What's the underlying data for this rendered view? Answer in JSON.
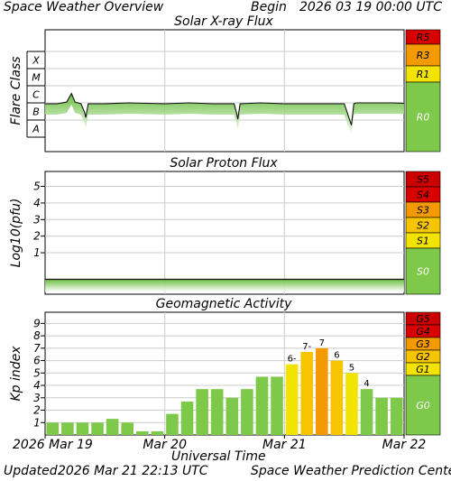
{
  "header": {
    "title": "Space Weather Overview",
    "begin_label": "Begin",
    "begin_value": "2026 03 19 00:00 UTC"
  },
  "footer": {
    "updated_label": "Updated",
    "updated_value": "2026 Mar 21 22:13 UTC",
    "credit": "Space Weather Prediction Center"
  },
  "x_axis": {
    "label": "Universal Time",
    "ticks": [
      "2026 Mar 19",
      "Mar 20",
      "Mar 21",
      "Mar 22"
    ]
  },
  "colors": {
    "green": "#7ec94a",
    "yellow": "#f2e400",
    "gold": "#f7c400",
    "orange": "#f29a00",
    "red_orange": "#ee5500",
    "red": "#d90000",
    "dark_red": "#cc0000",
    "grid": "#cccccc"
  },
  "chart_data": [
    {
      "type": "line",
      "title": "Solar X-ray Flux",
      "ylabel": "Flare Class",
      "y_categories": [
        "A",
        "B",
        "C",
        "M",
        "X"
      ],
      "xlim_days": [
        0,
        3
      ],
      "series": [
        {
          "values_class_level": [
            [
              0.0,
              1.95
            ],
            [
              0.1,
              1.95
            ],
            [
              0.18,
              2.05
            ],
            [
              0.22,
              2.55
            ],
            [
              0.25,
              2.05
            ],
            [
              0.3,
              1.95
            ],
            [
              0.33,
              1.45
            ],
            [
              0.34,
              1.15
            ],
            [
              0.36,
              1.95
            ],
            [
              0.5,
              1.95
            ],
            [
              0.7,
              2.0
            ],
            [
              1.0,
              1.95
            ],
            [
              1.2,
              2.0
            ],
            [
              1.4,
              1.95
            ],
            [
              1.58,
              1.95
            ],
            [
              1.6,
              1.4
            ],
            [
              1.61,
              1.05
            ],
            [
              1.63,
              1.95
            ],
            [
              1.8,
              2.0
            ],
            [
              2.0,
              1.95
            ],
            [
              2.2,
              1.95
            ],
            [
              2.38,
              1.95
            ],
            [
              2.5,
              1.95
            ],
            [
              2.55,
              0.9
            ],
            [
              2.56,
              0.7
            ],
            [
              2.58,
              1.95
            ],
            [
              2.6,
              2.0
            ],
            [
              2.75,
              2.0
            ],
            [
              2.9,
              2.0
            ],
            [
              3.0,
              1.98
            ]
          ]
        }
      ],
      "scale_labels": [
        "R5",
        "R3",
        "R1",
        "R0"
      ]
    },
    {
      "type": "line",
      "title": "Solar Proton Flux",
      "ylabel": "Log10(pfu)",
      "ylim": [
        -1.5,
        5.9
      ],
      "yticks": [
        "1",
        "2",
        "3",
        "4",
        "5"
      ],
      "series": [
        {
          "values_log10": [
            [
              0.0,
              -0.6
            ],
            [
              1.0,
              -0.6
            ],
            [
              2.0,
              -0.6
            ],
            [
              3.0,
              -0.6
            ]
          ]
        }
      ],
      "scale_labels": [
        "S5",
        "S4",
        "S3",
        "S2",
        "S1",
        "S0"
      ]
    },
    {
      "type": "bar",
      "title": "Geomagnetic Activity",
      "ylabel": "Kp index",
      "ylim": [
        0,
        9.9
      ],
      "yticks": [
        "1",
        "2",
        "3",
        "4",
        "5",
        "6",
        "7",
        "8",
        "9"
      ],
      "values": [
        1.0,
        1.0,
        1.0,
        1.0,
        1.3,
        1.0,
        0.3,
        0.3,
        1.7,
        2.7,
        3.7,
        3.7,
        3.0,
        3.7,
        4.7,
        4.7,
        5.7,
        6.7,
        7.0,
        6.0,
        5.0,
        3.7,
        3.0,
        3.0
      ],
      "bar_labels": [
        "",
        "",
        "",
        "",
        "",
        "",
        "",
        "",
        "",
        "",
        "",
        "",
        "",
        "",
        "",
        "",
        "6-",
        "7-",
        "7",
        "6",
        "5",
        "4",
        "",
        ""
      ],
      "bar_colors": [
        "green",
        "green",
        "green",
        "green",
        "green",
        "green",
        "green",
        "green",
        "green",
        "green",
        "green",
        "green",
        "green",
        "green",
        "green",
        "green",
        "yellow",
        "gold",
        "orange",
        "gold",
        "yellow",
        "green",
        "green",
        "green"
      ],
      "scale_labels": [
        "G5",
        "G4",
        "G3",
        "G2",
        "G1",
        "G0"
      ]
    }
  ]
}
